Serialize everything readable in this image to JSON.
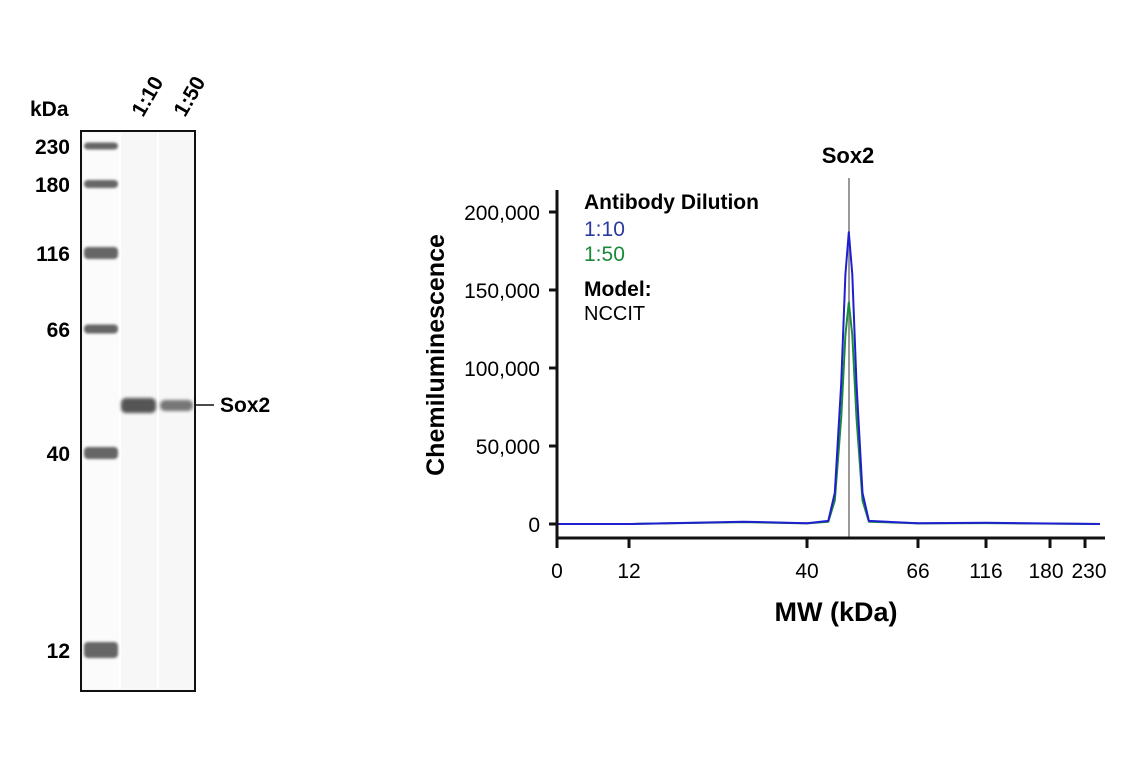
{
  "blot": {
    "unit_label": "kDa",
    "lane_labels": [
      "1:10",
      "1:50"
    ],
    "marker_labels": [
      "230",
      "180",
      "116",
      "66",
      "40",
      "12"
    ],
    "band_label": "Sox2"
  },
  "chart_data": {
    "type": "line",
    "title": "Sox2",
    "xlabel": "MW (kDa)",
    "ylabel": "Chemiluminescence",
    "x_ticks": [
      0,
      12,
      40,
      66,
      116,
      180,
      230
    ],
    "x_tick_labels": [
      "0",
      "12",
      "40",
      "66",
      "116",
      "180",
      "230"
    ],
    "y_ticks": [
      0,
      50000,
      100000,
      150000,
      200000
    ],
    "y_tick_labels": [
      "0",
      "50,000",
      "100,000",
      "150,000",
      "200,000"
    ],
    "ylim": [
      0,
      210000
    ],
    "xlim": [
      0,
      230
    ],
    "marker_line_x": 50,
    "legend": {
      "title": "Antibody Dilution",
      "model_label": "Model:",
      "model_value": "NCCIT",
      "placement": "top-left"
    },
    "series": [
      {
        "name": "1:10",
        "color": "#1f1fd0",
        "x": [
          0,
          12,
          30,
          40,
          45,
          46.5,
          48,
          49,
          49.8,
          50.6,
          51.6,
          53,
          54.5,
          66,
          116,
          230
        ],
        "y": [
          0,
          0,
          1500,
          500,
          2000,
          20000,
          90000,
          160000,
          187000,
          160000,
          90000,
          20000,
          2000,
          500,
          800,
          0
        ]
      },
      {
        "name": "1:50",
        "color": "#1a8a3a",
        "x": [
          0,
          12,
          30,
          40,
          45,
          46.5,
          48,
          49,
          49.8,
          50.6,
          51.6,
          53,
          54.5,
          66,
          116,
          230
        ],
        "y": [
          0,
          0,
          1200,
          400,
          1500,
          15000,
          68000,
          121000,
          142000,
          121000,
          68000,
          15000,
          1500,
          400,
          600,
          0
        ]
      }
    ]
  }
}
